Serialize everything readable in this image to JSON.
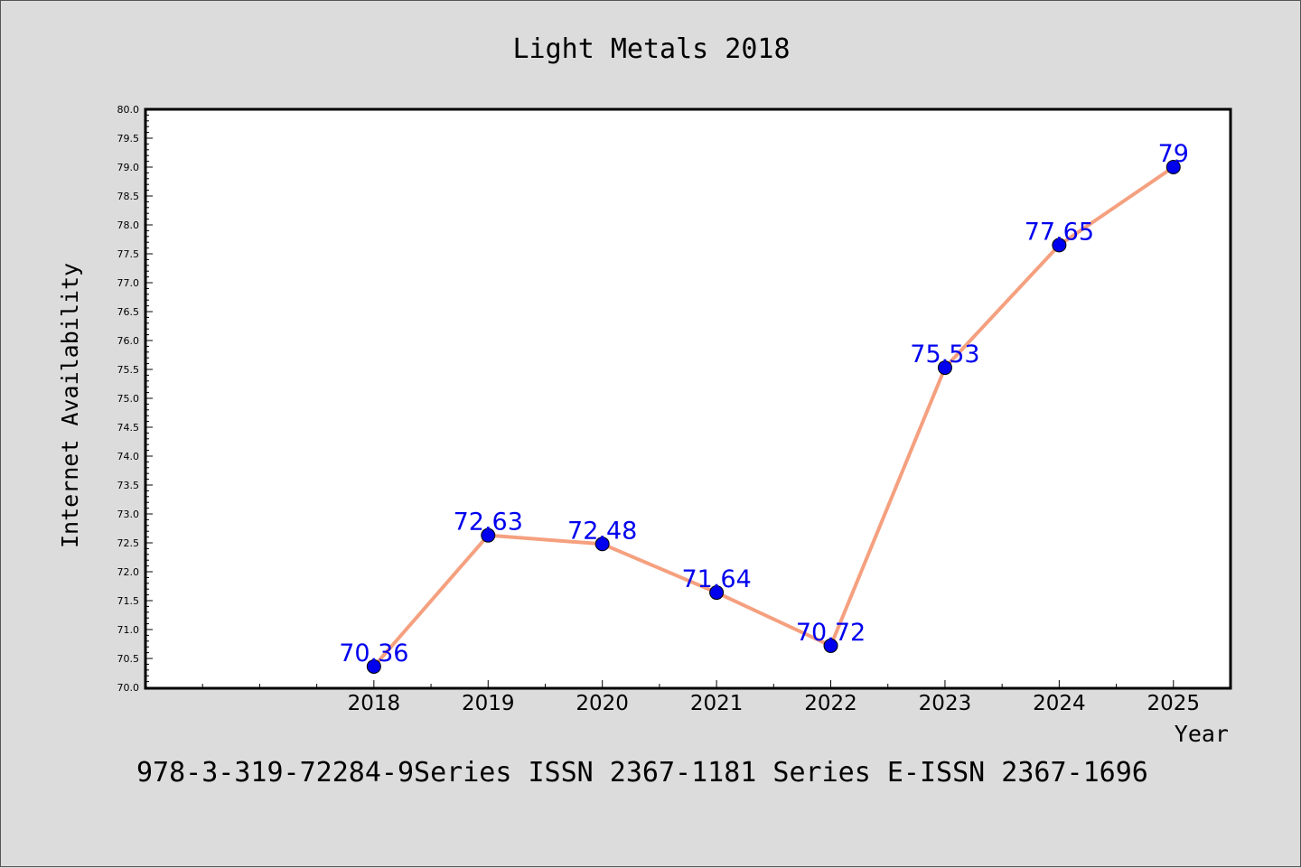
{
  "chart_data": {
    "type": "line",
    "title": "Light Metals 2018",
    "xlabel": "Year",
    "ylabel": "Internet Availability",
    "x_ticks": [
      "2018",
      "2019",
      "2020",
      "2021",
      "2022",
      "2023",
      "2024",
      "2025"
    ],
    "x_range": [
      2016,
      2025.5
    ],
    "ylim": [
      70.0,
      80.0
    ],
    "ytick_step": 0.5,
    "grid": false,
    "series": [
      {
        "x": [
          2018,
          2019,
          2020,
          2021,
          2022,
          2023,
          2024,
          2025
        ],
        "values": [
          70.36,
          72.63,
          72.48,
          71.64,
          70.72,
          75.53,
          77.65,
          79
        ],
        "labels": [
          "70.36",
          "72.63",
          "72.48",
          "71.64",
          "70.72",
          "75.53",
          "77.65",
          "79"
        ],
        "line_color": "#f5a07f",
        "marker_color": "#0000ee",
        "label_color": "#0000ee"
      }
    ],
    "caption": "978-3-319-72284-9Series ISSN 2367-1181 Series E-ISSN 2367-1696"
  }
}
